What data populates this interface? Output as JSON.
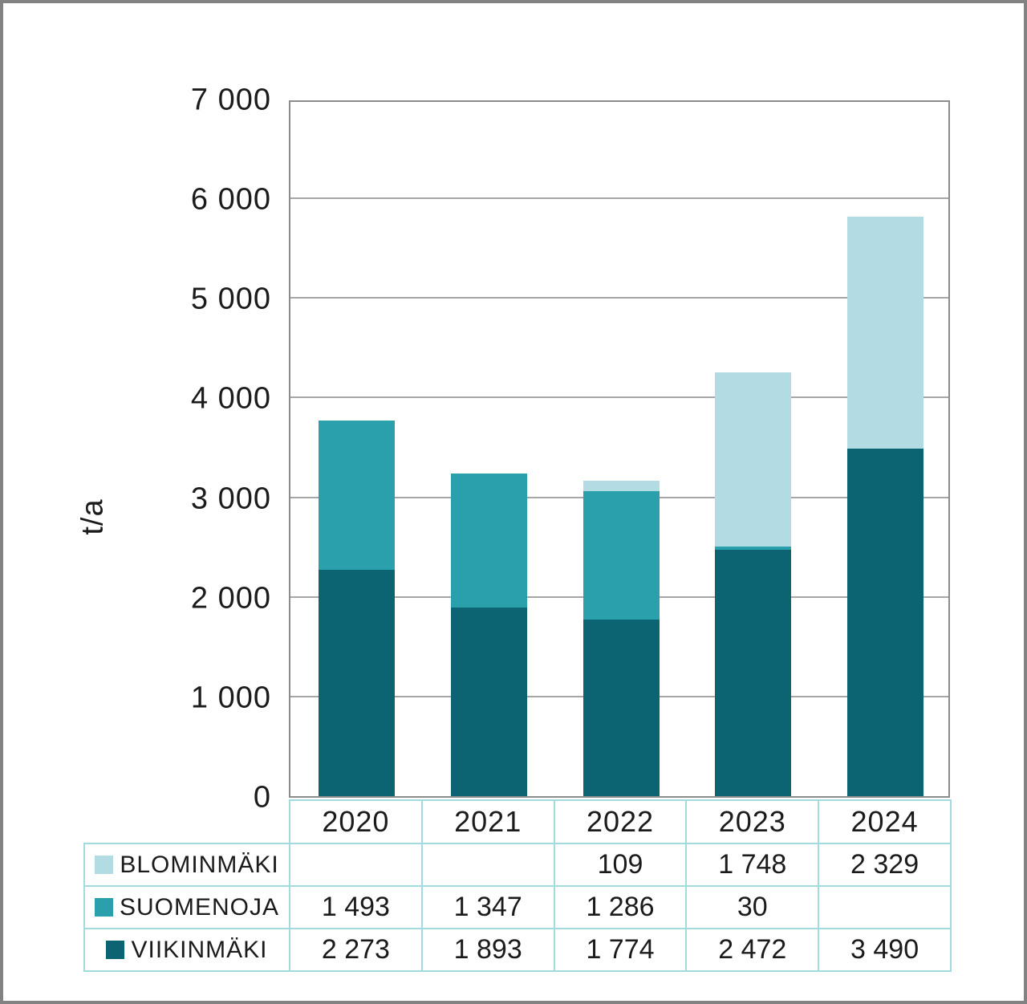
{
  "chart_data": {
    "type": "bar",
    "stacked": true,
    "title": "",
    "xlabel": "",
    "ylabel": "t/a",
    "categories": [
      "2020",
      "2021",
      "2022",
      "2023",
      "2024"
    ],
    "series": [
      {
        "name": "VIIKINMÄKI",
        "color": "#0c6371",
        "values": [
          2273,
          1893,
          1774,
          2472,
          3490
        ]
      },
      {
        "name": "SUOMENOJA",
        "color": "#2aa0ad",
        "values": [
          1493,
          1347,
          1286,
          30,
          null
        ]
      },
      {
        "name": "BLOMINMÄKI",
        "color": "#b3dbe4",
        "values": [
          null,
          null,
          109,
          1748,
          2329
        ]
      }
    ],
    "ylim": [
      0,
      7000
    ],
    "ytick_step": 1000,
    "yticks": [
      {
        "value": 7000,
        "label": "7 000"
      },
      {
        "value": 6000,
        "label": "6 000"
      },
      {
        "value": 5000,
        "label": "5 000"
      },
      {
        "value": 4000,
        "label": "4 000"
      },
      {
        "value": 3000,
        "label": "3 000"
      },
      {
        "value": 2000,
        "label": "2 000"
      },
      {
        "value": 1000,
        "label": "1 000"
      },
      {
        "value": 0,
        "label": "0"
      }
    ],
    "grid": true,
    "legend_position": "table-below"
  },
  "table": {
    "rows": [
      {
        "label": "BLOMINMÄKI",
        "swatch": "#b3dbe4",
        "cells": [
          "",
          "",
          "109",
          "1 748",
          "2 329"
        ]
      },
      {
        "label": "SUOMENOJA",
        "swatch": "#2aa0ad",
        "cells": [
          "1 493",
          "1 347",
          "1 286",
          "30",
          ""
        ]
      },
      {
        "label": "VIIKINMÄKI",
        "swatch": "#0c6371",
        "cells": [
          "2 273",
          "1 893",
          "1 774",
          "2 472",
          "3 490"
        ]
      }
    ]
  },
  "colors": {
    "viikinmaki": "#0c6371",
    "suomenoja": "#2aa0ad",
    "blominmaki": "#b3dbe4",
    "gridline": "#a6a6a6",
    "plot_border": "#8c8c8c",
    "table_border": "#a3dadd",
    "frame_border": "#828282",
    "text": "#1b1b1b",
    "background": "#ffffff"
  }
}
